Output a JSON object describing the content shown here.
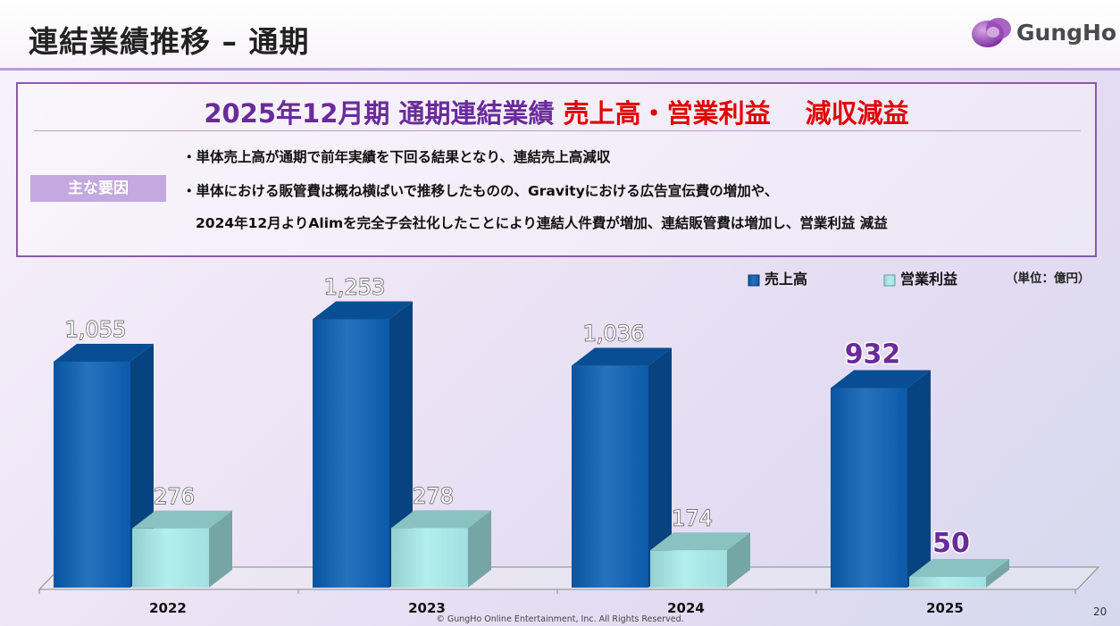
{
  "header": {
    "title": "連結業績推移 – 通期",
    "logo_text": "GungHo"
  },
  "summary": {
    "headline_part1": "2025年12月期 通期連結業績 ",
    "headline_part2": "売上高・営業利益　 減収減益",
    "factor_label": "主な要因",
    "bullets": [
      "・単体売上高が通期で前年実績を下回る結果となり、連結売上高減収",
      "・単体における販管費は概ね横ばいで推移したものの、Gravityにおける広告宣伝費の増加や、",
      "2024年12月よりAlimを完全子会社化したことにより連結人件費が増加、連結販管費は増加し、営業利益 減益"
    ]
  },
  "chart_data": {
    "type": "bar",
    "categories": [
      "2022",
      "2023",
      "2024",
      "2025"
    ],
    "series": [
      {
        "name": "売上高",
        "values": [
          1055,
          1253,
          1036,
          932
        ],
        "labels": [
          "1,055",
          "1,253",
          "1,036",
          "932"
        ],
        "color": "#0a5fb4"
      },
      {
        "name": "営業利益",
        "values": [
          276,
          278,
          174,
          50
        ],
        "labels": [
          "276",
          "278",
          "174",
          "50"
        ],
        "color": "#a8ecec"
      }
    ],
    "unit_label": "（単位：億円）",
    "legend_position": "top-right",
    "highlight_category": "2025",
    "highlight_color": "#6a2b9a"
  },
  "footer": {
    "copyright": "© GungHo Online Entertainment, Inc. All Rights Reserved.",
    "page_number": "20"
  }
}
